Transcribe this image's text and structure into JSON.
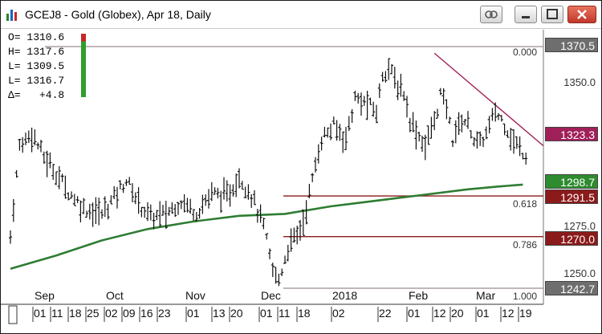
{
  "window": {
    "title": "GCEJ8 - Gold (Globex), Apr 18, Daily",
    "buttons": [
      "link-icon",
      "minimize-icon",
      "maximize-icon",
      "close-icon"
    ]
  },
  "ohlc": {
    "open": "O= 1310.6",
    "high": "H= 1317.6",
    "low": "L= 1309.5",
    "last": "L= 1316.7",
    "change": "Δ=   +4.8"
  },
  "price_axis": {
    "ticks": [
      "1350.0",
      "1275.0",
      "1250.0"
    ],
    "labels": [
      {
        "text": "1370.5",
        "color": "#6e6e6e"
      },
      {
        "text": "1323.3",
        "color": "#a0205a"
      },
      {
        "text": "1298.7",
        "color": "#2e8b2e"
      },
      {
        "text": "1291.5",
        "color": "#8b1a1a"
      },
      {
        "text": "1270.0",
        "color": "#8b1a1a"
      },
      {
        "text": "1242.7",
        "color": "#6e6e6e"
      }
    ]
  },
  "fibonacci": [
    "0.000",
    "0.618",
    "0.786",
    "1.000"
  ],
  "time_axis": {
    "months": [
      "Sep",
      "Oct",
      "Nov",
      "Dec",
      "2018",
      "Feb",
      "Mar"
    ],
    "dates": [
      "01",
      "11",
      "18",
      "25",
      "02",
      "09",
      "16",
      "23",
      "01",
      "13",
      "20",
      "01",
      "11",
      "18",
      "02",
      "22",
      "01",
      "12",
      "20",
      "01",
      "12",
      "19"
    ]
  },
  "chart_data": {
    "type": "ohlc",
    "symbol": "GCEJ8 - Gold (Globex), Apr 18, Daily",
    "ylim": [
      1242.7,
      1370.5
    ],
    "colors": {
      "bars": "#111111",
      "moving_average": "#2e7d32",
      "trendline": "#a0205a",
      "fib_lines": "#8b1a1a"
    },
    "price_path": [
      [
        0,
        1270
      ],
      [
        3,
        1318
      ],
      [
        7,
        1325
      ],
      [
        11,
        1312
      ],
      [
        14,
        1306
      ],
      [
        19,
        1294
      ],
      [
        24,
        1285
      ],
      [
        30,
        1282
      ],
      [
        34,
        1291
      ],
      [
        38,
        1300
      ],
      [
        42,
        1288
      ],
      [
        46,
        1280
      ],
      [
        51,
        1282
      ],
      [
        56,
        1289
      ],
      [
        61,
        1283
      ],
      [
        66,
        1293
      ],
      [
        71,
        1291
      ],
      [
        75,
        1302
      ],
      [
        79,
        1292
      ],
      [
        83,
        1275
      ],
      [
        86,
        1252
      ],
      [
        88,
        1247
      ],
      [
        91,
        1264
      ],
      [
        94,
        1271
      ],
      [
        96,
        1278
      ],
      [
        99,
        1300
      ],
      [
        102,
        1322
      ],
      [
        106,
        1328
      ],
      [
        110,
        1322
      ],
      [
        113,
        1343
      ],
      [
        117,
        1340
      ],
      [
        120,
        1336
      ],
      [
        122,
        1356
      ],
      [
        124,
        1360
      ],
      [
        126,
        1352
      ],
      [
        129,
        1346
      ],
      [
        131,
        1332
      ],
      [
        133,
        1326
      ],
      [
        136,
        1318
      ],
      [
        139,
        1331
      ],
      [
        141,
        1345
      ],
      [
        143,
        1338
      ],
      [
        145,
        1322
      ],
      [
        148,
        1332
      ],
      [
        150,
        1330
      ],
      [
        153,
        1318
      ],
      [
        156,
        1324
      ],
      [
        159,
        1336
      ],
      [
        162,
        1330
      ],
      [
        165,
        1320
      ],
      [
        168,
        1315
      ],
      [
        170,
        1312
      ]
    ],
    "moving_average": [
      [
        0,
        1253
      ],
      [
        15,
        1260
      ],
      [
        30,
        1268
      ],
      [
        45,
        1274
      ],
      [
        60,
        1278
      ],
      [
        75,
        1281
      ],
      [
        90,
        1282
      ],
      [
        105,
        1286
      ],
      [
        120,
        1289
      ],
      [
        135,
        1292
      ],
      [
        150,
        1295
      ],
      [
        160,
        1296.5
      ],
      [
        168,
        1297.5
      ]
    ],
    "fib_levels": [
      {
        "label": "0.000",
        "price": 1370.5
      },
      {
        "label": "0.618",
        "price": 1291.5
      },
      {
        "label": "0.786",
        "price": 1270.0
      },
      {
        "label": "1.000",
        "price": 1242.7
      }
    ]
  }
}
